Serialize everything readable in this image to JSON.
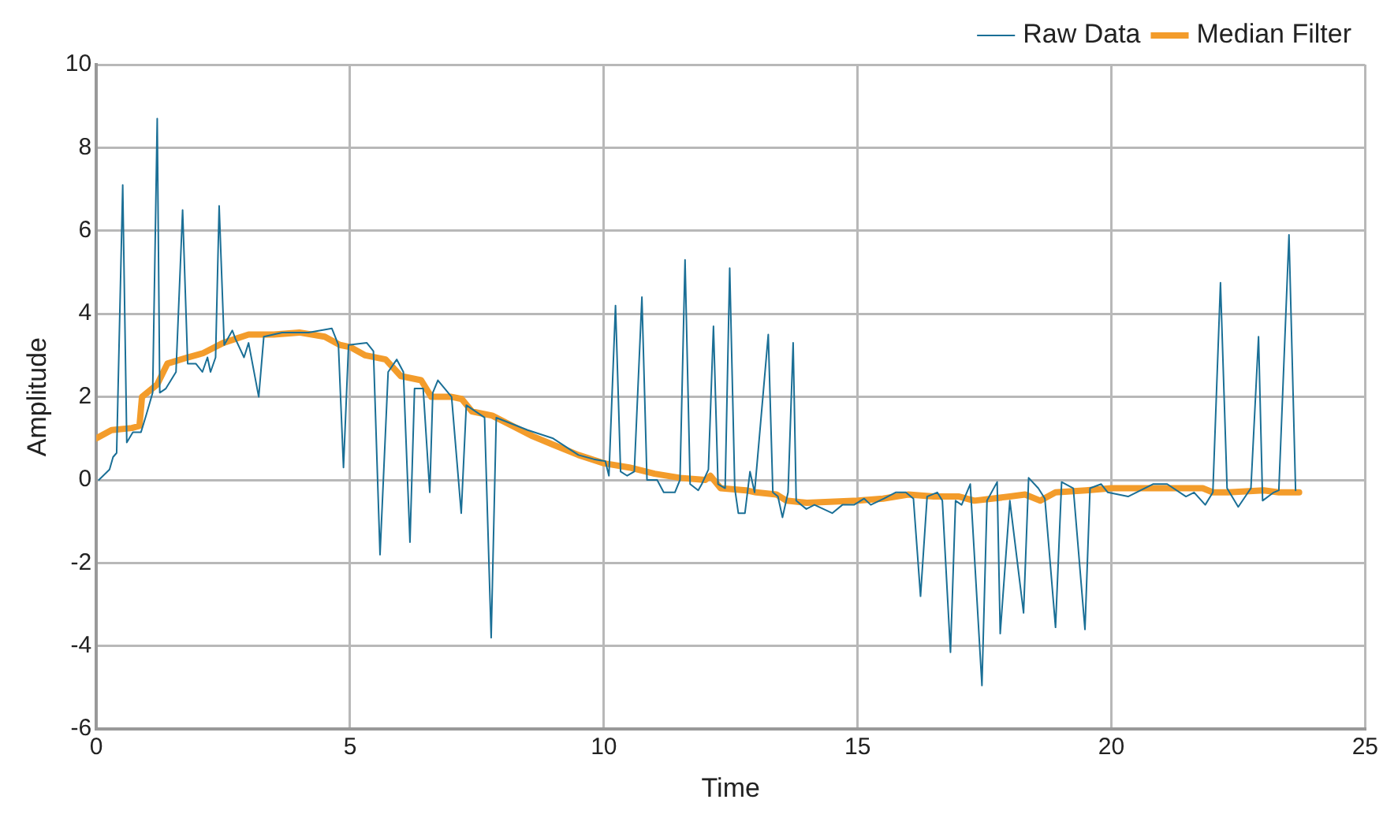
{
  "chart_data": {
    "type": "line",
    "xlabel": "Time",
    "ylabel": "Amplitude",
    "xlim": [
      0,
      25
    ],
    "xticks": [
      0,
      5,
      10,
      15,
      20,
      25
    ],
    "ylim": [
      -6,
      10
    ],
    "yticks": [
      -6,
      -4,
      -2,
      0,
      2,
      4,
      6,
      8,
      10
    ],
    "grid": true,
    "legend": "top right",
    "marker": "none",
    "line_style": "solid",
    "series": [
      {
        "name": "Raw Data",
        "color": "#1a6f96",
        "x": [
          0.05,
          0.26,
          0.33,
          0.4,
          0.52,
          0.6,
          0.72,
          0.88,
          0.98,
          1.11,
          1.2,
          1.25,
          1.37,
          1.57,
          1.7,
          1.8,
          1.96,
          2.09,
          2.19,
          2.25,
          2.35,
          2.42,
          2.52,
          2.68,
          2.74,
          2.91,
          3.0,
          3.2,
          3.3,
          3.66,
          4.18,
          4.64,
          4.77,
          4.87,
          4.97,
          5.33,
          5.46,
          5.59,
          5.75,
          5.92,
          6.05,
          6.18,
          6.27,
          6.44,
          6.57,
          6.63,
          6.73,
          7.0,
          7.19,
          7.29,
          7.65,
          7.78,
          7.88,
          8.5,
          9.0,
          9.5,
          9.8,
          10.03,
          10.1,
          10.23,
          10.33,
          10.46,
          10.6,
          10.75,
          10.85,
          11.05,
          11.18,
          11.4,
          11.5,
          11.6,
          11.7,
          11.86,
          11.93,
          12.06,
          12.16,
          12.25,
          12.39,
          12.48,
          12.58,
          12.65,
          12.78,
          12.88,
          12.97,
          13.24,
          13.33,
          13.43,
          13.52,
          13.63,
          13.73,
          13.79,
          13.99,
          14.15,
          14.5,
          14.7,
          14.93,
          15.13,
          15.26,
          15.52,
          15.75,
          15.95,
          16.1,
          16.24,
          16.37,
          16.57,
          16.67,
          16.83,
          16.93,
          17.05,
          17.22,
          17.45,
          17.55,
          17.75,
          17.81,
          18.0,
          18.27,
          18.37,
          18.56,
          18.69,
          18.9,
          19.02,
          19.25,
          19.48,
          19.58,
          19.8,
          19.93,
          20.33,
          20.82,
          21.1,
          21.47,
          21.63,
          21.85,
          22.0,
          22.15,
          22.28,
          22.5,
          22.75,
          22.9,
          22.98,
          23.2,
          23.3,
          23.5,
          23.63
        ],
        "values": [
          0,
          0.25,
          0.55,
          0.65,
          7.1,
          0.9,
          1.15,
          1.15,
          1.55,
          2.1,
          8.7,
          2.1,
          2.2,
          2.6,
          6.5,
          2.8,
          2.8,
          2.6,
          2.95,
          2.6,
          2.95,
          6.6,
          3.25,
          3.6,
          3.4,
          2.95,
          3.3,
          2.0,
          3.45,
          3.55,
          3.55,
          3.65,
          3.25,
          0.3,
          3.25,
          3.3,
          3.1,
          -1.8,
          2.6,
          2.9,
          2.6,
          -1.5,
          2.2,
          2.2,
          -0.3,
          2.1,
          2.4,
          2.0,
          -0.8,
          1.8,
          1.5,
          -3.8,
          1.5,
          1.2,
          1.0,
          0.6,
          0.5,
          0.45,
          0.1,
          4.2,
          0.2,
          0.1,
          0.2,
          4.4,
          0,
          0,
          -0.3,
          -0.3,
          0,
          5.3,
          -0.1,
          -0.25,
          -0.1,
          0.25,
          3.7,
          -0.1,
          -0.2,
          5.1,
          -0.2,
          -0.8,
          -0.8,
          0.2,
          -0.3,
          3.5,
          -0.3,
          -0.4,
          -0.9,
          -0.3,
          3.3,
          -0.5,
          -0.7,
          -0.6,
          -0.8,
          -0.6,
          -0.6,
          -0.45,
          -0.6,
          -0.45,
          -0.3,
          -0.3,
          -0.45,
          -2.8,
          -0.4,
          -0.3,
          -0.5,
          -4.15,
          -0.5,
          -0.6,
          -0.1,
          -4.95,
          -0.5,
          -0.05,
          -3.7,
          -0.5,
          -3.2,
          0.05,
          -0.2,
          -0.45,
          -3.55,
          -0.05,
          -0.2,
          -3.6,
          -0.2,
          -0.1,
          -0.3,
          -0.4,
          -0.1,
          -0.1,
          -0.4,
          -0.3,
          -0.6,
          -0.3,
          4.75,
          -0.2,
          -0.65,
          -0.2,
          3.45,
          -0.5,
          -0.3,
          -0.25,
          5.9,
          -0.25
        ]
      },
      {
        "name": "Median Filter",
        "color": "#f39c2b",
        "x": [
          0,
          0.3,
          0.7,
          0.85,
          0.9,
          1.2,
          1.4,
          1.8,
          2.1,
          2.5,
          3.0,
          3.5,
          4.0,
          4.5,
          4.8,
          5.0,
          5.3,
          5.7,
          6.0,
          6.4,
          6.6,
          7.0,
          7.2,
          7.4,
          7.8,
          8.2,
          8.6,
          9.0,
          9.5,
          10.0,
          10.5,
          11.0,
          11.5,
          12.0,
          12.1,
          12.3,
          12.8,
          13.0,
          13.4,
          13.6,
          14.0,
          15.0,
          15.5,
          16.0,
          16.5,
          17.0,
          17.3,
          18.0,
          18.3,
          18.6,
          18.9,
          19.5,
          20.0,
          21.0,
          21.8,
          22.0,
          22.3,
          23.0,
          23.3,
          23.7
        ],
        "values": [
          1.0,
          1.2,
          1.25,
          1.3,
          2.0,
          2.3,
          2.8,
          2.95,
          3.05,
          3.3,
          3.5,
          3.5,
          3.55,
          3.45,
          3.25,
          3.2,
          3.0,
          2.9,
          2.5,
          2.4,
          2.0,
          2.0,
          1.95,
          1.65,
          1.55,
          1.3,
          1.05,
          0.85,
          0.6,
          0.4,
          0.3,
          0.15,
          0.05,
          0,
          0.1,
          -0.2,
          -0.25,
          -0.3,
          -0.35,
          -0.5,
          -0.55,
          -0.5,
          -0.45,
          -0.35,
          -0.4,
          -0.4,
          -0.5,
          -0.4,
          -0.35,
          -0.5,
          -0.3,
          -0.25,
          -0.2,
          -0.2,
          -0.2,
          -0.3,
          -0.3,
          -0.25,
          -0.3,
          -0.3
        ]
      }
    ]
  }
}
